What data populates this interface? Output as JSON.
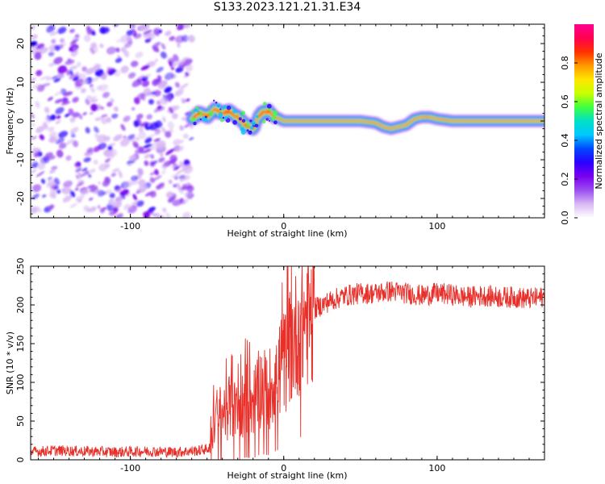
{
  "title": "S133.2023.121.21.31.E34",
  "colors": {
    "snr_line": "#e8302a",
    "colormap": [
      "#ffffff",
      "#d8b8f4",
      "#9a4ef0",
      "#7a00f0",
      "#2a00ff",
      "#0048ff",
      "#00c8ff",
      "#00e0c8",
      "#40ff40",
      "#c8ff00",
      "#ffe600",
      "#ff9a00",
      "#ff3000",
      "#ff0050",
      "#ff0090"
    ]
  },
  "chart_data": [
    {
      "type": "heatmap",
      "xlabel": "Height of straight line (km)",
      "ylabel": "Frequency (Hz)",
      "xlim": [
        -165,
        170
      ],
      "ylim": [
        -25,
        25
      ],
      "x_ticks": [
        "-100",
        "0",
        "100"
      ],
      "x_tick_values": [
        -100,
        0,
        100
      ],
      "y_ticks": [
        "20",
        "10",
        "0",
        "-10",
        "-20"
      ],
      "y_tick_values": [
        20,
        10,
        0,
        -10,
        -20
      ],
      "noise_region_x": [
        -165,
        -60
      ],
      "signal_track": {
        "x": [
          -60,
          -55,
          -50,
          -45,
          -40,
          -35,
          -30,
          -25,
          -20,
          -15,
          -10,
          -5,
          0,
          10,
          20,
          40,
          50,
          60,
          65,
          70,
          75,
          80,
          85,
          90,
          95,
          100,
          110,
          130,
          150,
          170
        ],
        "freq_hz": [
          0.5,
          2,
          1,
          3,
          2,
          2.5,
          1,
          -1,
          -2,
          2,
          2.5,
          1,
          0,
          0,
          0,
          0,
          0,
          -0.5,
          -1.5,
          -2,
          -1.5,
          -1,
          0.5,
          1,
          1,
          0.5,
          0,
          0,
          0,
          0
        ]
      },
      "colorbar": {
        "label": "Normalized spectral amplitude",
        "range": [
          0,
          1
        ],
        "ticks": [
          "0.0",
          "0.2",
          "0.4",
          "0.6",
          "0.8"
        ],
        "tick_values": [
          0.0,
          0.2,
          0.4,
          0.6,
          0.8
        ]
      }
    },
    {
      "type": "line",
      "xlabel": "Height of straight line (km)",
      "ylabel": "SNR (10 * v/v)",
      "xlim": [
        -165,
        170
      ],
      "ylim": [
        0,
        250
      ],
      "x_ticks": [
        "-100",
        "0",
        "100"
      ],
      "x_tick_values": [
        -100,
        0,
        100
      ],
      "y_ticks": [
        "250",
        "200",
        "150",
        "100",
        "50",
        "0"
      ],
      "y_tick_values": [
        250,
        200,
        150,
        100,
        50,
        0
      ],
      "series": [
        {
          "name": "SNR",
          "x": [
            -165,
            -150,
            -130,
            -110,
            -90,
            -70,
            -55,
            -48,
            -45,
            -40,
            -35,
            -30,
            -25,
            -20,
            -15,
            -10,
            -5,
            0,
            5,
            10,
            15,
            20,
            25,
            30,
            40,
            50,
            60,
            70,
            80,
            90,
            100,
            110,
            120,
            130,
            140,
            150,
            160,
            170
          ],
          "values": [
            10,
            12,
            11,
            10,
            11,
            10,
            12,
            15,
            55,
            60,
            70,
            60,
            80,
            75,
            95,
            90,
            110,
            125,
            150,
            170,
            185,
            195,
            200,
            205,
            212,
            215,
            215,
            218,
            215,
            212,
            215,
            213,
            210,
            212,
            210,
            210,
            208,
            210
          ]
        }
      ]
    }
  ]
}
